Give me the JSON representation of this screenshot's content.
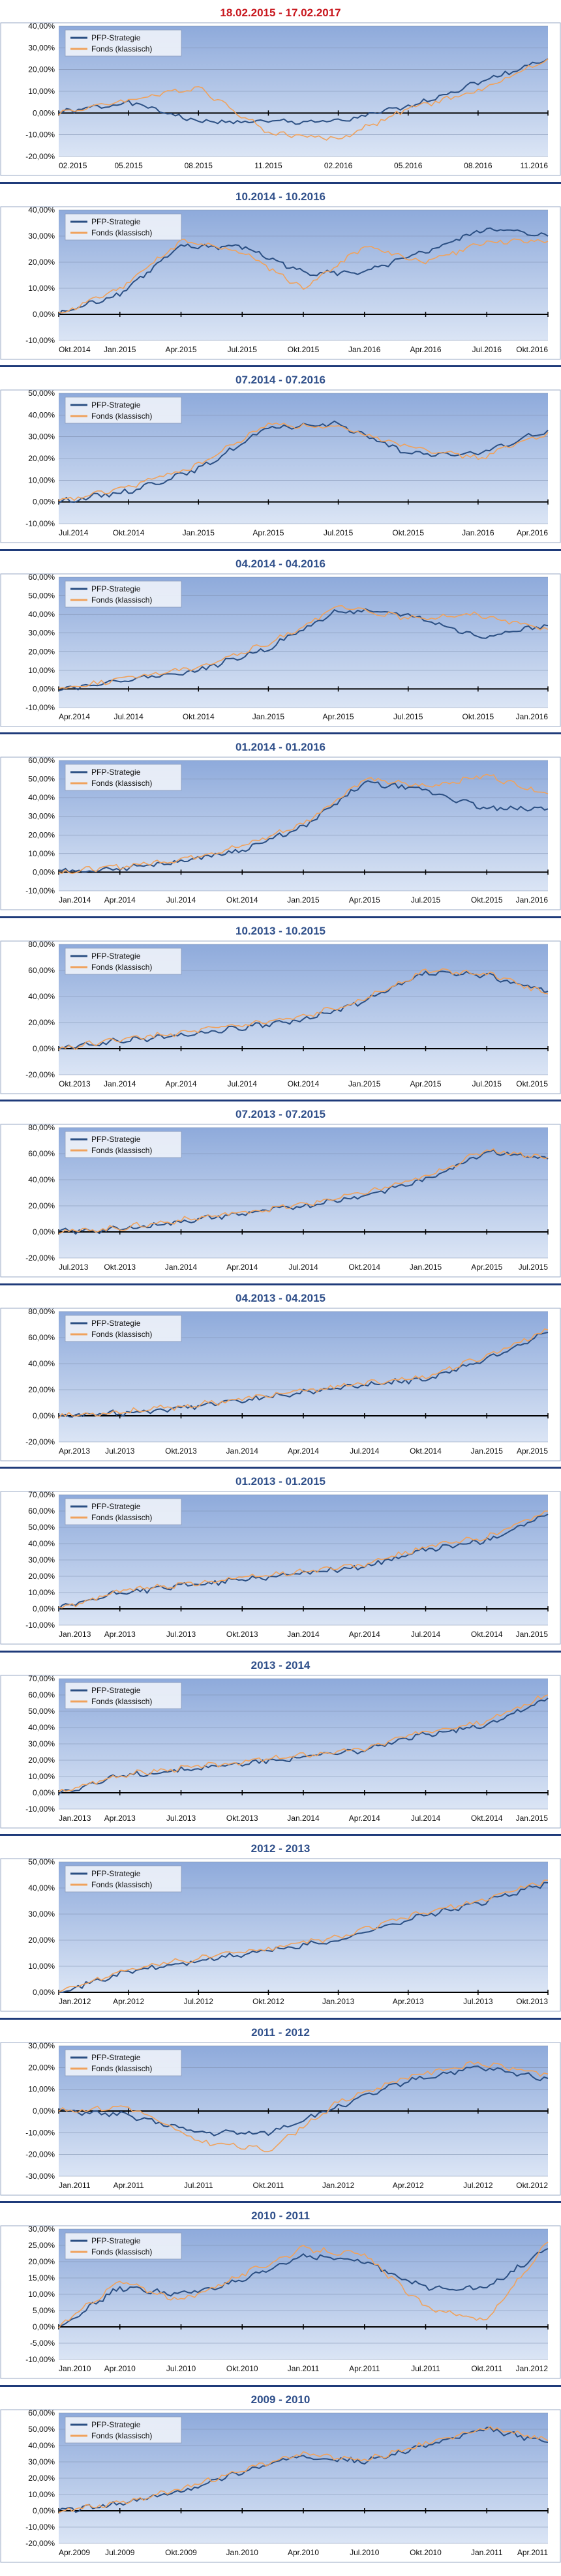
{
  "colors": {
    "strategy": "#2b4f83",
    "fund": "#f0a25c",
    "title_first": "#c8161d",
    "title_other": "#2f4f8a",
    "plot_top": "#8eaadb",
    "plot_bottom": "#dbe5f5",
    "separator": "#1f3b7a"
  },
  "icons": {
    "legend_swatch": "line-legend-icon"
  },
  "chart_data": [
    {
      "type": "line",
      "title": "18.02.2015 - 17.02.2017",
      "ylim": [
        -20,
        40
      ],
      "yticks": [
        "-20,00%",
        "-10,00%",
        "0,00%",
        "10,00%",
        "20,00%",
        "30,00%",
        "40,00%"
      ],
      "x": [
        "02.2015",
        "05.2015",
        "08.2015",
        "11.2015",
        "02.2016",
        "05.2016",
        "08.2016",
        "11.2016"
      ],
      "series": [
        {
          "name": "PFP-Strategie",
          "values": [
            0,
            5,
            -4,
            -4,
            -4,
            3,
            14,
            25
          ]
        },
        {
          "name": "Fonds (klassisch)",
          "values": [
            0,
            6,
            12,
            -9,
            -12,
            2,
            10,
            25
          ]
        }
      ]
    },
    {
      "type": "line",
      "title": "10.2014 - 10.2016",
      "ylim": [
        -10,
        40
      ],
      "yticks": [
        "-10,00%",
        "0,00%",
        "10,00%",
        "20,00%",
        "30,00%",
        "40,00%"
      ],
      "x": [
        "Okt.2014",
        "Jan.2015",
        "Apr.2015",
        "Jul.2015",
        "Okt.2015",
        "Jan.2016",
        "Apr.2016",
        "Jul.2016",
        "Okt.2016"
      ],
      "series": [
        {
          "name": "PFP-Strategie",
          "values": [
            0,
            8,
            26,
            26,
            16,
            16,
            24,
            33,
            30
          ]
        },
        {
          "name": "Fonds (klassisch)",
          "values": [
            0,
            10,
            28,
            24,
            10,
            26,
            20,
            28,
            28
          ]
        }
      ]
    },
    {
      "type": "line",
      "title": "07.2014 - 07.2016",
      "ylim": [
        -10,
        50
      ],
      "yticks": [
        "-10,00%",
        "0,00%",
        "10,00%",
        "20,00%",
        "30,00%",
        "40,00%",
        "50,00%"
      ],
      "x": [
        "Jul.2014",
        "Okt.2014",
        "Jan.2015",
        "Apr.2015",
        "Jul.2015",
        "Okt.2015",
        "Jan.2016",
        "Apr.2016"
      ],
      "series": [
        {
          "name": "PFP-Strategie",
          "values": [
            0,
            5,
            15,
            34,
            36,
            22,
            22,
            33
          ]
        },
        {
          "name": "Fonds (klassisch)",
          "values": [
            0,
            7,
            17,
            36,
            34,
            26,
            20,
            32
          ]
        }
      ]
    },
    {
      "type": "line",
      "title": "04.2014 - 04.2016",
      "ylim": [
        -10,
        60
      ],
      "yticks": [
        "-10,00%",
        "0,00%",
        "10,00%",
        "20,00%",
        "30,00%",
        "40,00%",
        "50,00%",
        "60,00%"
      ],
      "x": [
        "Apr.2014",
        "Jul.2014",
        "Okt.2014",
        "Jan.2015",
        "Apr.2015",
        "Jul.2015",
        "Okt.2015",
        "Jan.2016"
      ],
      "series": [
        {
          "name": "PFP-Strategie",
          "values": [
            0,
            5,
            10,
            22,
            42,
            40,
            28,
            34
          ]
        },
        {
          "name": "Fonds (klassisch)",
          "values": [
            0,
            6,
            12,
            24,
            44,
            38,
            40,
            32
          ]
        }
      ]
    },
    {
      "type": "line",
      "title": "01.2014 - 01.2016",
      "ylim": [
        -10,
        60
      ],
      "yticks": [
        "-10,00%",
        "0,00%",
        "10,00%",
        "20,00%",
        "30,00%",
        "40,00%",
        "50,00%",
        "60,00%"
      ],
      "x": [
        "Jan.2014",
        "Apr.2014",
        "Jul.2014",
        "Okt.2014",
        "Jan.2015",
        "Apr.2015",
        "Jul.2015",
        "Okt.2015",
        "Jan.2016"
      ],
      "series": [
        {
          "name": "PFP-Strategie",
          "values": [
            0,
            2,
            6,
            12,
            24,
            48,
            44,
            34,
            34
          ]
        },
        {
          "name": "Fonds (klassisch)",
          "values": [
            0,
            3,
            7,
            14,
            26,
            50,
            46,
            52,
            42
          ]
        }
      ]
    },
    {
      "type": "line",
      "title": "10.2013 - 10.2015",
      "ylim": [
        -20,
        80
      ],
      "yticks": [
        "-20,00%",
        "0,00%",
        "20,00%",
        "40,00%",
        "60,00%",
        "80,00%"
      ],
      "x": [
        "Okt.2013",
        "Jan.2014",
        "Apr.2014",
        "Jul.2014",
        "Okt.2014",
        "Jan.2015",
        "Apr.2015",
        "Jul.2015",
        "Okt.2015"
      ],
      "series": [
        {
          "name": "PFP-Strategie",
          "values": [
            0,
            6,
            10,
            16,
            22,
            36,
            58,
            56,
            44
          ]
        },
        {
          "name": "Fonds (klassisch)",
          "values": [
            0,
            7,
            12,
            18,
            24,
            38,
            60,
            58,
            42
          ]
        }
      ]
    },
    {
      "type": "line",
      "title": "07.2013 - 07.2015",
      "ylim": [
        -20,
        80
      ],
      "yticks": [
        "-20,00%",
        "0,00%",
        "20,00%",
        "40,00%",
        "60,00%",
        "80,00%"
      ],
      "x": [
        "Jul.2013",
        "Okt.2013",
        "Jan.2014",
        "Apr.2014",
        "Jul.2014",
        "Okt.2014",
        "Jan.2015",
        "Apr.2015",
        "Jul.2015"
      ],
      "series": [
        {
          "name": "PFP-Strategie",
          "values": [
            0,
            2,
            8,
            14,
            20,
            28,
            40,
            62,
            56
          ]
        },
        {
          "name": "Fonds (klassisch)",
          "values": [
            0,
            3,
            9,
            15,
            21,
            30,
            42,
            63,
            57
          ]
        }
      ]
    },
    {
      "type": "line",
      "title": "04.2013 - 04.2015",
      "ylim": [
        -20,
        80
      ],
      "yticks": [
        "-20,00%",
        "0,00%",
        "20,00%",
        "40,00%",
        "60,00%",
        "80,00%"
      ],
      "x": [
        "Apr.2013",
        "Jul.2013",
        "Okt.2013",
        "Jan.2014",
        "Apr.2014",
        "Jul.2014",
        "Okt.2014",
        "Jan.2015",
        "Apr.2015"
      ],
      "series": [
        {
          "name": "PFP-Strategie",
          "values": [
            0,
            2,
            6,
            12,
            18,
            24,
            28,
            44,
            64
          ]
        },
        {
          "name": "Fonds (klassisch)",
          "values": [
            0,
            3,
            7,
            13,
            19,
            25,
            30,
            46,
            66
          ]
        }
      ]
    },
    {
      "type": "line",
      "title": "01.2013 - 01.2015",
      "ylim": [
        -10,
        70
      ],
      "yticks": [
        "-10,00%",
        "0,00%",
        "10,00%",
        "20,00%",
        "30,00%",
        "40,00%",
        "50,00%",
        "60,00%",
        "70,00%"
      ],
      "x": [
        "Jan.2013",
        "Apr.2013",
        "Jul.2013",
        "Okt.2013",
        "Jan.2014",
        "Apr.2014",
        "Jul.2014",
        "Okt.2014",
        "Jan.2015"
      ],
      "series": [
        {
          "name": "PFP-Strategie",
          "values": [
            0,
            10,
            14,
            18,
            22,
            26,
            36,
            42,
            58
          ]
        },
        {
          "name": "Fonds (klassisch)",
          "values": [
            0,
            11,
            15,
            19,
            23,
            27,
            38,
            44,
            60
          ]
        }
      ]
    },
    {
      "type": "line",
      "title": "2013 - 2014",
      "ylim": [
        -10,
        70
      ],
      "yticks": [
        "-10,00%",
        "0,00%",
        "10,00%",
        "20,00%",
        "30,00%",
        "40,00%",
        "50,00%",
        "60,00%",
        "70,00%"
      ],
      "x": [
        "Jan.2013",
        "Apr.2013",
        "Jul.2013",
        "Okt.2013",
        "Jan.2014",
        "Apr.2014",
        "Jul.2014",
        "Okt.2014",
        "Jan.2015"
      ],
      "series": [
        {
          "name": "PFP-Strategie",
          "values": [
            0,
            10,
            14,
            18,
            22,
            26,
            36,
            42,
            58
          ]
        },
        {
          "name": "Fonds (klassisch)",
          "values": [
            0,
            11,
            15,
            19,
            23,
            27,
            38,
            44,
            60
          ]
        }
      ]
    },
    {
      "type": "line",
      "title": "2012 - 2013",
      "ylim": [
        0,
        50
      ],
      "yticks": [
        "0,00%",
        "10,00%",
        "20,00%",
        "30,00%",
        "40,00%",
        "50,00%"
      ],
      "x": [
        "Jan.2012",
        "Apr.2012",
        "Jul.2012",
        "Okt.2012",
        "Jan.2013",
        "Apr.2013",
        "Jul.2013",
        "Okt.2013"
      ],
      "series": [
        {
          "name": "PFP-Strategie",
          "values": [
            0,
            8,
            12,
            16,
            20,
            28,
            34,
            42
          ]
        },
        {
          "name": "Fonds (klassisch)",
          "values": [
            0,
            9,
            13,
            17,
            21,
            29,
            35,
            43
          ]
        }
      ]
    },
    {
      "type": "line",
      "title": "2011 - 2012",
      "ylim": [
        -30,
        30
      ],
      "yticks": [
        "-30,00%",
        "-20,00%",
        "-10,00%",
        "0,00%",
        "10,00%",
        "20,00%",
        "30,00%"
      ],
      "x": [
        "Jan.2011",
        "Apr.2011",
        "Jul.2011",
        "Okt.2011",
        "Jan.2012",
        "Apr.2012",
        "Jul.2012",
        "Okt.2012"
      ],
      "series": [
        {
          "name": "PFP-Strategie",
          "values": [
            0,
            -2,
            -10,
            -10,
            2,
            14,
            20,
            15
          ]
        },
        {
          "name": "Fonds (klassisch)",
          "values": [
            0,
            2,
            -14,
            -18,
            4,
            16,
            22,
            17
          ]
        }
      ]
    },
    {
      "type": "line",
      "title": "2010 - 2011",
      "ylim": [
        -10,
        30
      ],
      "yticks": [
        "-10,00%",
        "-5,00%",
        "0,00%",
        "5,00%",
        "10,00%",
        "15,00%",
        "20,00%",
        "25,00%",
        "30,00%"
      ],
      "x": [
        "Jan.2010",
        "Apr.2010",
        "Jul.2010",
        "Okt.2010",
        "Jan.2011",
        "Apr.2011",
        "Jul.2011",
        "Okt.2011",
        "Jan.2012"
      ],
      "series": [
        {
          "name": "PFP-Strategie",
          "values": [
            0,
            12,
            10,
            14,
            22,
            20,
            12,
            12,
            24
          ]
        },
        {
          "name": "Fonds (klassisch)",
          "values": [
            0,
            14,
            8,
            16,
            24,
            22,
            6,
            2,
            26
          ]
        }
      ]
    },
    {
      "type": "line",
      "title": "2009 - 2010",
      "ylim": [
        -20,
        60
      ],
      "yticks": [
        "-20,00%",
        "-10,00%",
        "0,00%",
        "10,00%",
        "20,00%",
        "30,00%",
        "40,00%",
        "50,00%",
        "60,00%"
      ],
      "x": [
        "Apr.2009",
        "Jul.2009",
        "Okt.2009",
        "Jan.2010",
        "Apr.2010",
        "Jul.2010",
        "Okt.2010",
        "Jan.2011",
        "Apr.2011"
      ],
      "series": [
        {
          "name": "PFP-Strategie",
          "values": [
            0,
            4,
            12,
            24,
            34,
            30,
            40,
            50,
            42
          ]
        },
        {
          "name": "Fonds (klassisch)",
          "values": [
            0,
            5,
            13,
            25,
            35,
            31,
            41,
            51,
            43
          ]
        }
      ]
    }
  ]
}
